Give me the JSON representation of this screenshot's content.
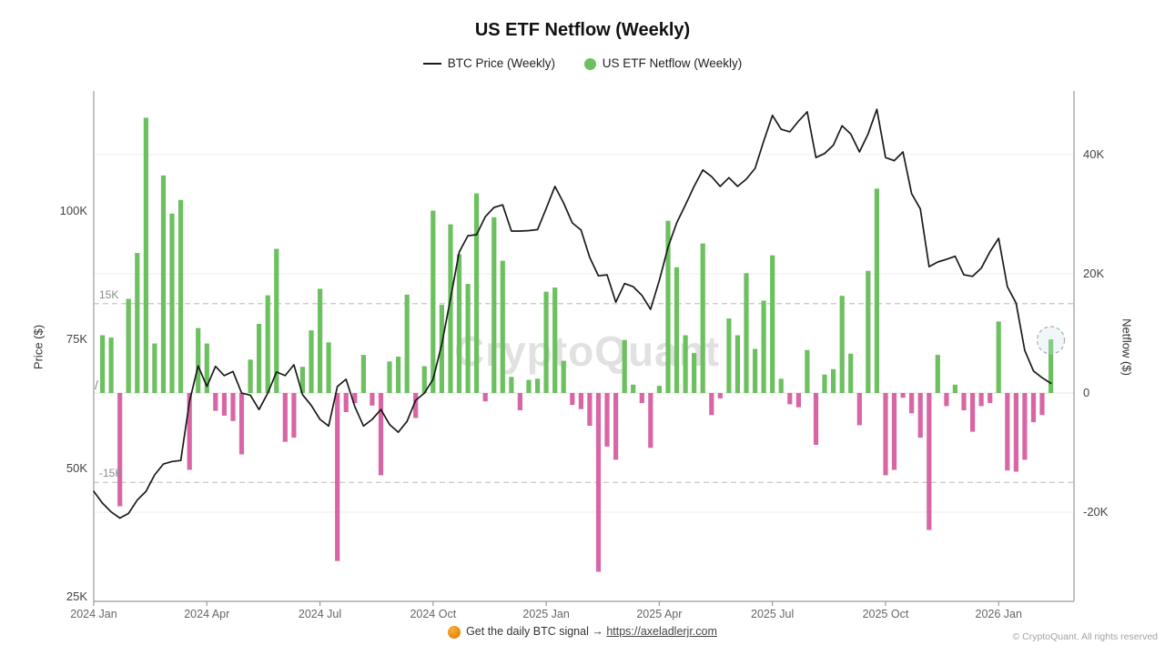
{
  "title": "US ETF Netflow (Weekly)",
  "legend": [
    {
      "label": "BTC Price (Weekly)",
      "type": "line",
      "color": "#1a1a1a"
    },
    {
      "label": "US ETF Netflow (Weekly)",
      "type": "dot",
      "color": "#6cc05f"
    }
  ],
  "watermark": "CryptoQuant",
  "axis_break_mark": "/",
  "footer": {
    "signal_icon": "orange-ball-icon",
    "signal_text": "Get the daily BTC signal → ",
    "signal_url": "https://axeladlerjr.com",
    "copyright": "© CryptoQuant. All rights reserved"
  },
  "chart_data": {
    "type": "bar",
    "subtype": "dual-axis bar + line, weekly from 2024-01 to 2026-02",
    "title": "US ETF Netflow (Weekly)",
    "x_tick_labels": [
      "2024 Jan",
      "2024 Apr",
      "2024 Jul",
      "2024 Oct",
      "2025 Jan",
      "2025 Apr",
      "2025 Jul",
      "2025 Oct",
      "2026 Jan"
    ],
    "x_tick_week_index": [
      0,
      13,
      26,
      39,
      52,
      65,
      78,
      91,
      104
    ],
    "left_axis": {
      "label": "Price ($)",
      "tick_values": [
        25,
        50,
        75,
        100
      ],
      "tick_labels": [
        "25K",
        "50K",
        "75K",
        "100K"
      ],
      "range_k": [
        24,
        124
      ]
    },
    "right_axis": {
      "label": "Netflow ($)",
      "tick_values": [
        -20,
        0,
        20,
        40
      ],
      "tick_labels": [
        "-20K",
        "0",
        "20K",
        "40K"
      ],
      "range_k": [
        -35,
        51
      ]
    },
    "threshold_lines": {
      "upper_value": 15,
      "lower_value": -15,
      "upper_label": "15K",
      "lower_label": "-15K"
    },
    "grid": "horizontal light lines at right-axis ticks, dashed at +/-15K",
    "legend_position": "top-center",
    "highlight_last_bar": true,
    "series": [
      {
        "name": "BTC Price (Weekly)",
        "type": "line",
        "axis": "left",
        "color": "#1a1a1a",
        "start_week": 0,
        "values_k_usd": [
          45.5,
          43.2,
          41.5,
          40.3,
          41.2,
          43.8,
          45.5,
          48.7,
          50.8,
          51.3,
          51.5,
          63.0,
          69.9,
          65.9,
          69.8,
          68.0,
          68.8,
          64.6,
          64.2,
          61.4,
          64.6,
          68.7,
          68.0,
          70.1,
          64.3,
          62.2,
          59.5,
          58.2,
          65.9,
          67.3,
          62.0,
          58.2,
          59.5,
          61.4,
          58.5,
          57.0,
          59.1,
          63.2,
          64.6,
          67.3,
          74.1,
          83.0,
          92.0,
          95.2,
          95.4,
          98.9,
          100.7,
          101.2,
          96.1,
          96.1,
          96.2,
          96.4,
          100.5,
          104.8,
          101.6,
          97.7,
          96.3,
          91.0,
          87.4,
          87.6,
          82.3,
          85.9,
          85.3,
          83.6,
          80.9,
          86.5,
          93.0,
          97.7,
          101.2,
          104.8,
          108.0,
          106.7,
          104.8,
          106.5,
          104.8,
          106.2,
          108.3,
          113.6,
          118.6,
          115.9,
          115.4,
          117.5,
          119.3,
          110.4,
          111.2,
          112.8,
          116.6,
          115.0,
          111.5,
          115.0,
          119.8,
          110.4,
          109.8,
          111.5,
          103.4,
          100.4,
          89.2,
          90.1,
          90.6,
          91.2,
          87.6,
          87.3,
          88.9,
          92.1,
          94.7,
          85.3,
          82.1,
          72.9,
          68.9,
          67.6,
          66.5
        ]
      },
      {
        "name": "US ETF Netflow (Weekly)",
        "type": "bar",
        "axis": "right",
        "color_positive": "#6cc05f",
        "color_negative": "#d866a4",
        "start_week": 1,
        "values_k": [
          9.7,
          9.3,
          -19.0,
          15.8,
          23.5,
          46.2,
          8.3,
          36.5,
          30.1,
          32.4,
          -12.9,
          10.9,
          8.3,
          -3.0,
          -3.8,
          -4.7,
          -10.3,
          5.6,
          11.6,
          16.4,
          24.2,
          -8.2,
          -7.5,
          4.4,
          10.5,
          17.5,
          8.5,
          -28.2,
          -3.2,
          -1.7,
          6.4,
          -2.1,
          -13.8,
          5.3,
          6.1,
          16.5,
          -4.2,
          4.5,
          30.6,
          14.8,
          28.3,
          23.3,
          18.3,
          33.5,
          -1.4,
          29.5,
          22.2,
          2.7,
          -2.9,
          2.2,
          2.4,
          17.0,
          17.7,
          5.4,
          -2.0,
          -2.7,
          -5.5,
          -30.0,
          -9.0,
          -11.2,
          8.9,
          1.4,
          -1.7,
          -9.2,
          1.2,
          28.9,
          21.1,
          9.7,
          6.7,
          25.1,
          -3.7,
          -0.9,
          12.5,
          9.7,
          20.1,
          7.4,
          15.5,
          23.1,
          2.4,
          -1.9,
          -2.4,
          7.2,
          -8.7,
          3.1,
          4.0,
          16.3,
          6.6,
          -5.4,
          20.5,
          34.3,
          -13.8,
          -12.9,
          -0.8,
          -3.4,
          -7.5,
          -23.0,
          6.4,
          -2.2,
          1.4,
          -2.9,
          -6.5,
          -2.2,
          -1.7,
          12.0,
          -13.0,
          -13.2,
          -11.2,
          -4.9,
          -3.7,
          9.0
        ]
      }
    ]
  }
}
